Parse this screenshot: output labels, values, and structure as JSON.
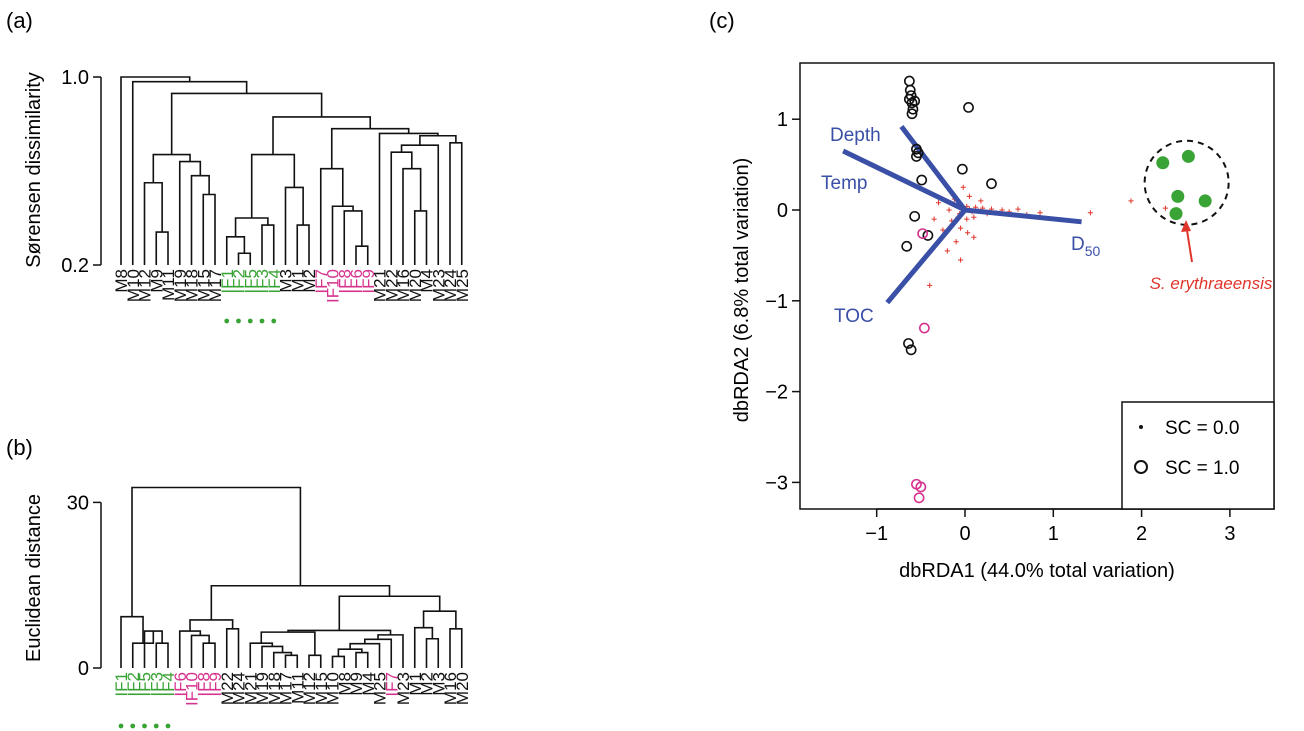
{
  "colors": {
    "black": "#111111",
    "green": "#3aa335",
    "magenta": "#d6338f",
    "blue": "#3a4fa6",
    "red": "#e0352b"
  },
  "chart_data": [
    {
      "panel": "(a)",
      "type": "dendrogram",
      "ylabel": "Sørensen dissimilarity",
      "ylim": [
        0.2,
        1.0
      ],
      "yticks": [
        0.2,
        1.0
      ],
      "leaves": [
        {
          "label": "M8",
          "group": "black",
          "dot": false
        },
        {
          "label": "M10",
          "group": "black",
          "dot": false
        },
        {
          "label": "M12",
          "group": "black",
          "dot": false
        },
        {
          "label": "M9",
          "group": "black",
          "dot": false
        },
        {
          "label": "M11",
          "group": "black",
          "dot": false
        },
        {
          "label": "M19",
          "group": "black",
          "dot": false
        },
        {
          "label": "M18",
          "group": "black",
          "dot": false
        },
        {
          "label": "M15",
          "group": "black",
          "dot": false
        },
        {
          "label": "M17",
          "group": "black",
          "dot": false
        },
        {
          "label": "IF1",
          "group": "green",
          "dot": true
        },
        {
          "label": "IF2",
          "group": "green",
          "dot": true
        },
        {
          "label": "IF5",
          "group": "green",
          "dot": true
        },
        {
          "label": "IF3",
          "group": "green",
          "dot": true
        },
        {
          "label": "IF4",
          "group": "green",
          "dot": true
        },
        {
          "label": "M3",
          "group": "black",
          "dot": false
        },
        {
          "label": "M1",
          "group": "black",
          "dot": false
        },
        {
          "label": "M2",
          "group": "black",
          "dot": false
        },
        {
          "label": "IF7",
          "group": "magenta",
          "dot": false
        },
        {
          "label": "IF10",
          "group": "magenta",
          "dot": false
        },
        {
          "label": "IF8",
          "group": "magenta",
          "dot": false
        },
        {
          "label": "IF6",
          "group": "magenta",
          "dot": false
        },
        {
          "label": "IF9",
          "group": "magenta",
          "dot": false
        },
        {
          "label": "M21",
          "group": "black",
          "dot": false
        },
        {
          "label": "M22",
          "group": "black",
          "dot": false
        },
        {
          "label": "M16",
          "group": "black",
          "dot": false
        },
        {
          "label": "M20",
          "group": "black",
          "dot": false
        },
        {
          "label": "M4",
          "group": "black",
          "dot": false
        },
        {
          "label": "M23",
          "group": "black",
          "dot": false
        },
        {
          "label": "M24",
          "group": "black",
          "dot": false
        },
        {
          "label": "M25",
          "group": "black",
          "dot": false
        }
      ],
      "merges": [
        [
          3,
          4,
          0.34
        ],
        [
          2,
          "n0",
          0.55
        ],
        [
          7,
          8,
          0.5
        ],
        [
          6,
          "n2",
          0.58
        ],
        [
          5,
          "n3",
          0.64
        ],
        [
          "n1",
          "n4",
          0.67
        ],
        [
          10,
          11,
          0.25
        ],
        [
          9,
          "n6",
          0.32
        ],
        [
          12,
          13,
          0.37
        ],
        [
          "n7",
          "n8",
          0.4
        ],
        [
          15,
          16,
          0.37
        ],
        [
          14,
          "n10",
          0.53
        ],
        [
          "n9",
          "n11",
          0.67
        ],
        [
          20,
          21,
          0.28
        ],
        [
          19,
          "n13",
          0.43
        ],
        [
          18,
          "n14",
          0.45
        ],
        [
          17,
          "n15",
          0.61
        ],
        [
          25,
          26,
          0.43
        ],
        [
          24,
          "n17",
          0.61
        ],
        [
          23,
          "n18",
          0.68
        ],
        [
          27,
          "n19",
          0.71
        ],
        [
          28,
          29,
          0.72
        ],
        [
          "n20",
          "n21",
          0.75
        ],
        [
          22,
          "n22",
          0.76
        ],
        [
          "n16",
          "n23",
          0.78
        ],
        [
          "n12",
          "n24",
          0.83
        ],
        [
          "n5",
          "n25",
          0.93
        ],
        [
          1,
          "n26",
          0.98
        ],
        [
          0,
          "n27",
          1.0
        ]
      ]
    },
    {
      "panel": "(b)",
      "type": "dendrogram",
      "ylabel": "Euclidean distance",
      "ylim": [
        0,
        32.7
      ],
      "yticks": [
        0,
        30
      ],
      "leaves": [
        {
          "label": "IF1",
          "group": "green",
          "dot": true
        },
        {
          "label": "IF2",
          "group": "green",
          "dot": true
        },
        {
          "label": "IF5",
          "group": "green",
          "dot": true
        },
        {
          "label": "IF3",
          "group": "green",
          "dot": true
        },
        {
          "label": "IF4",
          "group": "green",
          "dot": true
        },
        {
          "label": "IF6",
          "group": "magenta",
          "dot": false
        },
        {
          "label": "IF10",
          "group": "magenta",
          "dot": false
        },
        {
          "label": "IF8",
          "group": "magenta",
          "dot": false
        },
        {
          "label": "IF9",
          "group": "magenta",
          "dot": false
        },
        {
          "label": "M22",
          "group": "black",
          "dot": false
        },
        {
          "label": "M24",
          "group": "black",
          "dot": false
        },
        {
          "label": "M21",
          "group": "black",
          "dot": false
        },
        {
          "label": "M19",
          "group": "black",
          "dot": false
        },
        {
          "label": "M18",
          "group": "black",
          "dot": false
        },
        {
          "label": "M17",
          "group": "black",
          "dot": false
        },
        {
          "label": "M11",
          "group": "black",
          "dot": false
        },
        {
          "label": "M12",
          "group": "black",
          "dot": false
        },
        {
          "label": "M15",
          "group": "black",
          "dot": false
        },
        {
          "label": "M10",
          "group": "black",
          "dot": false
        },
        {
          "label": "M8",
          "group": "black",
          "dot": false
        },
        {
          "label": "M9",
          "group": "black",
          "dot": false
        },
        {
          "label": "M4",
          "group": "black",
          "dot": false
        },
        {
          "label": "M25",
          "group": "black",
          "dot": false
        },
        {
          "label": "IF7",
          "group": "magenta",
          "dot": false
        },
        {
          "label": "M23",
          "group": "black",
          "dot": false
        },
        {
          "label": "M1",
          "group": "black",
          "dot": false
        },
        {
          "label": "M2",
          "group": "black",
          "dot": false
        },
        {
          "label": "M3",
          "group": "black",
          "dot": false
        },
        {
          "label": "M16",
          "group": "black",
          "dot": false
        },
        {
          "label": "M20",
          "group": "black",
          "dot": false
        }
      ],
      "merges": [
        [
          3,
          4,
          4.5
        ],
        [
          2,
          "n0",
          6.7
        ],
        [
          1,
          "n1",
          4.5
        ],
        [
          0,
          "n2",
          9.3
        ],
        [
          7,
          8,
          4.5
        ],
        [
          6,
          "n4",
          5.9
        ],
        [
          5,
          "n5",
          6.7
        ],
        [
          9,
          10,
          7.1
        ],
        [
          "n6",
          "n7",
          8.7
        ],
        [
          14,
          15,
          2.3
        ],
        [
          13,
          "n9",
          2.8
        ],
        [
          12,
          "n10",
          3.9
        ],
        [
          11,
          "n11",
          4.5
        ],
        [
          16,
          17,
          2.3
        ],
        [
          "n12",
          "n13",
          6.5
        ],
        [
          18,
          19,
          2.1
        ],
        [
          20,
          21,
          2.8
        ],
        [
          "n15",
          "n16",
          3.4
        ],
        [
          "n17",
          22,
          4.4
        ],
        [
          "n18",
          23,
          5.2
        ],
        [
          "n19",
          24,
          6.0
        ],
        [
          "n14",
          "n20",
          6.8
        ],
        [
          26,
          27,
          5.3
        ],
        [
          25,
          "n22",
          7.3
        ],
        [
          28,
          29,
          7.1
        ],
        [
          "n23",
          "n24",
          10.3
        ],
        [
          "n21",
          "n25",
          13.0
        ],
        [
          "n8",
          "n26",
          14.9
        ],
        [
          "n3",
          "n27",
          32.7
        ]
      ]
    },
    {
      "panel": "(c)",
      "type": "scatter",
      "xlabel": "dbRDA1 (44.0% total variation)",
      "ylabel": "dbRDA2 (6.8% total variation)",
      "xlim": [
        -1.78,
        3.55
      ],
      "ylim": [
        -3.2,
        1.65
      ],
      "xticks": [
        -1,
        0,
        1,
        2,
        3
      ],
      "yticks": [
        -3,
        -2,
        -1,
        0,
        1
      ],
      "vectors": [
        {
          "label": "Depth",
          "x": -0.72,
          "y": 0.92
        },
        {
          "label": "Temp",
          "x": -1.38,
          "y": 0.65
        },
        {
          "label": "D50",
          "x": 1.32,
          "y": -0.13
        },
        {
          "label": "TOC",
          "x": -0.88,
          "y": -1.02
        }
      ],
      "sites_black": [
        [
          -0.63,
          1.42
        ],
        [
          -0.62,
          1.32
        ],
        [
          -0.61,
          1.26
        ],
        [
          -0.63,
          1.22
        ],
        [
          -0.6,
          1.18
        ],
        [
          -0.57,
          1.2
        ],
        [
          -0.59,
          1.11
        ],
        [
          -0.6,
          1.06
        ],
        [
          0.04,
          1.13
        ],
        [
          -0.55,
          0.67
        ],
        [
          -0.53,
          0.63
        ],
        [
          -0.55,
          0.59
        ],
        [
          -0.03,
          0.45
        ],
        [
          0.3,
          0.29
        ],
        [
          -0.49,
          0.33
        ],
        [
          -0.42,
          -0.28
        ],
        [
          -0.66,
          -0.4
        ],
        [
          -0.57,
          -0.07
        ],
        [
          -0.64,
          -1.47
        ],
        [
          -0.61,
          -1.54
        ]
      ],
      "sites_magenta": [
        [
          -0.48,
          -0.26
        ],
        [
          -0.46,
          -1.3
        ],
        [
          -0.55,
          -3.02
        ],
        [
          -0.5,
          -3.05
        ],
        [
          -0.52,
          -3.17
        ]
      ],
      "sites_green": [
        [
          2.24,
          0.52
        ],
        [
          2.53,
          0.59
        ],
        [
          2.41,
          0.15
        ],
        [
          2.72,
          0.1
        ],
        [
          2.39,
          -0.04
        ]
      ],
      "species": [
        [
          0.02,
          0.04
        ],
        [
          0.05,
          0.01
        ],
        [
          -0.03,
          0.02
        ],
        [
          0.08,
          -0.02
        ],
        [
          0.12,
          0.03
        ],
        [
          -0.06,
          -0.04
        ],
        [
          0.15,
          -0.01
        ],
        [
          0.2,
          0.02
        ],
        [
          -0.1,
          0.05
        ],
        [
          0.25,
          -0.04
        ],
        [
          0.3,
          0.01
        ],
        [
          0.35,
          -0.03
        ],
        [
          0.42,
          0.0
        ],
        [
          0.5,
          -0.02
        ],
        [
          0.6,
          0.01
        ],
        [
          0.7,
          -0.05
        ],
        [
          0.85,
          -0.03
        ],
        [
          1.42,
          -0.03
        ],
        [
          -0.15,
          -0.12
        ],
        [
          -0.05,
          -0.2
        ],
        [
          0.03,
          -0.25
        ],
        [
          -0.25,
          -0.22
        ],
        [
          -0.1,
          -0.35
        ],
        [
          -0.35,
          -0.1
        ],
        [
          0.1,
          -0.3
        ],
        [
          -0.2,
          -0.45
        ],
        [
          -0.05,
          -0.55
        ],
        [
          0.05,
          0.15
        ],
        [
          -0.02,
          0.25
        ],
        [
          -0.12,
          0.12
        ],
        [
          0.18,
          0.1
        ],
        [
          -0.3,
          0.08
        ],
        [
          0.02,
          -0.1
        ],
        [
          -0.08,
          -0.08
        ],
        [
          0.1,
          -0.08
        ],
        [
          -0.18,
          0.0
        ],
        [
          -0.4,
          -0.83
        ],
        [
          1.88,
          0.1
        ],
        [
          2.27,
          0.02
        ],
        [
          2.35,
          -0.06
        ]
      ],
      "annotation": {
        "text": "S. erythraeensis",
        "x": 2.95,
        "y": -0.8
      },
      "legend": {
        "position": "bottom-right",
        "small_label": "SC = 0.0",
        "large_label": "SC = 1.0"
      }
    }
  ]
}
